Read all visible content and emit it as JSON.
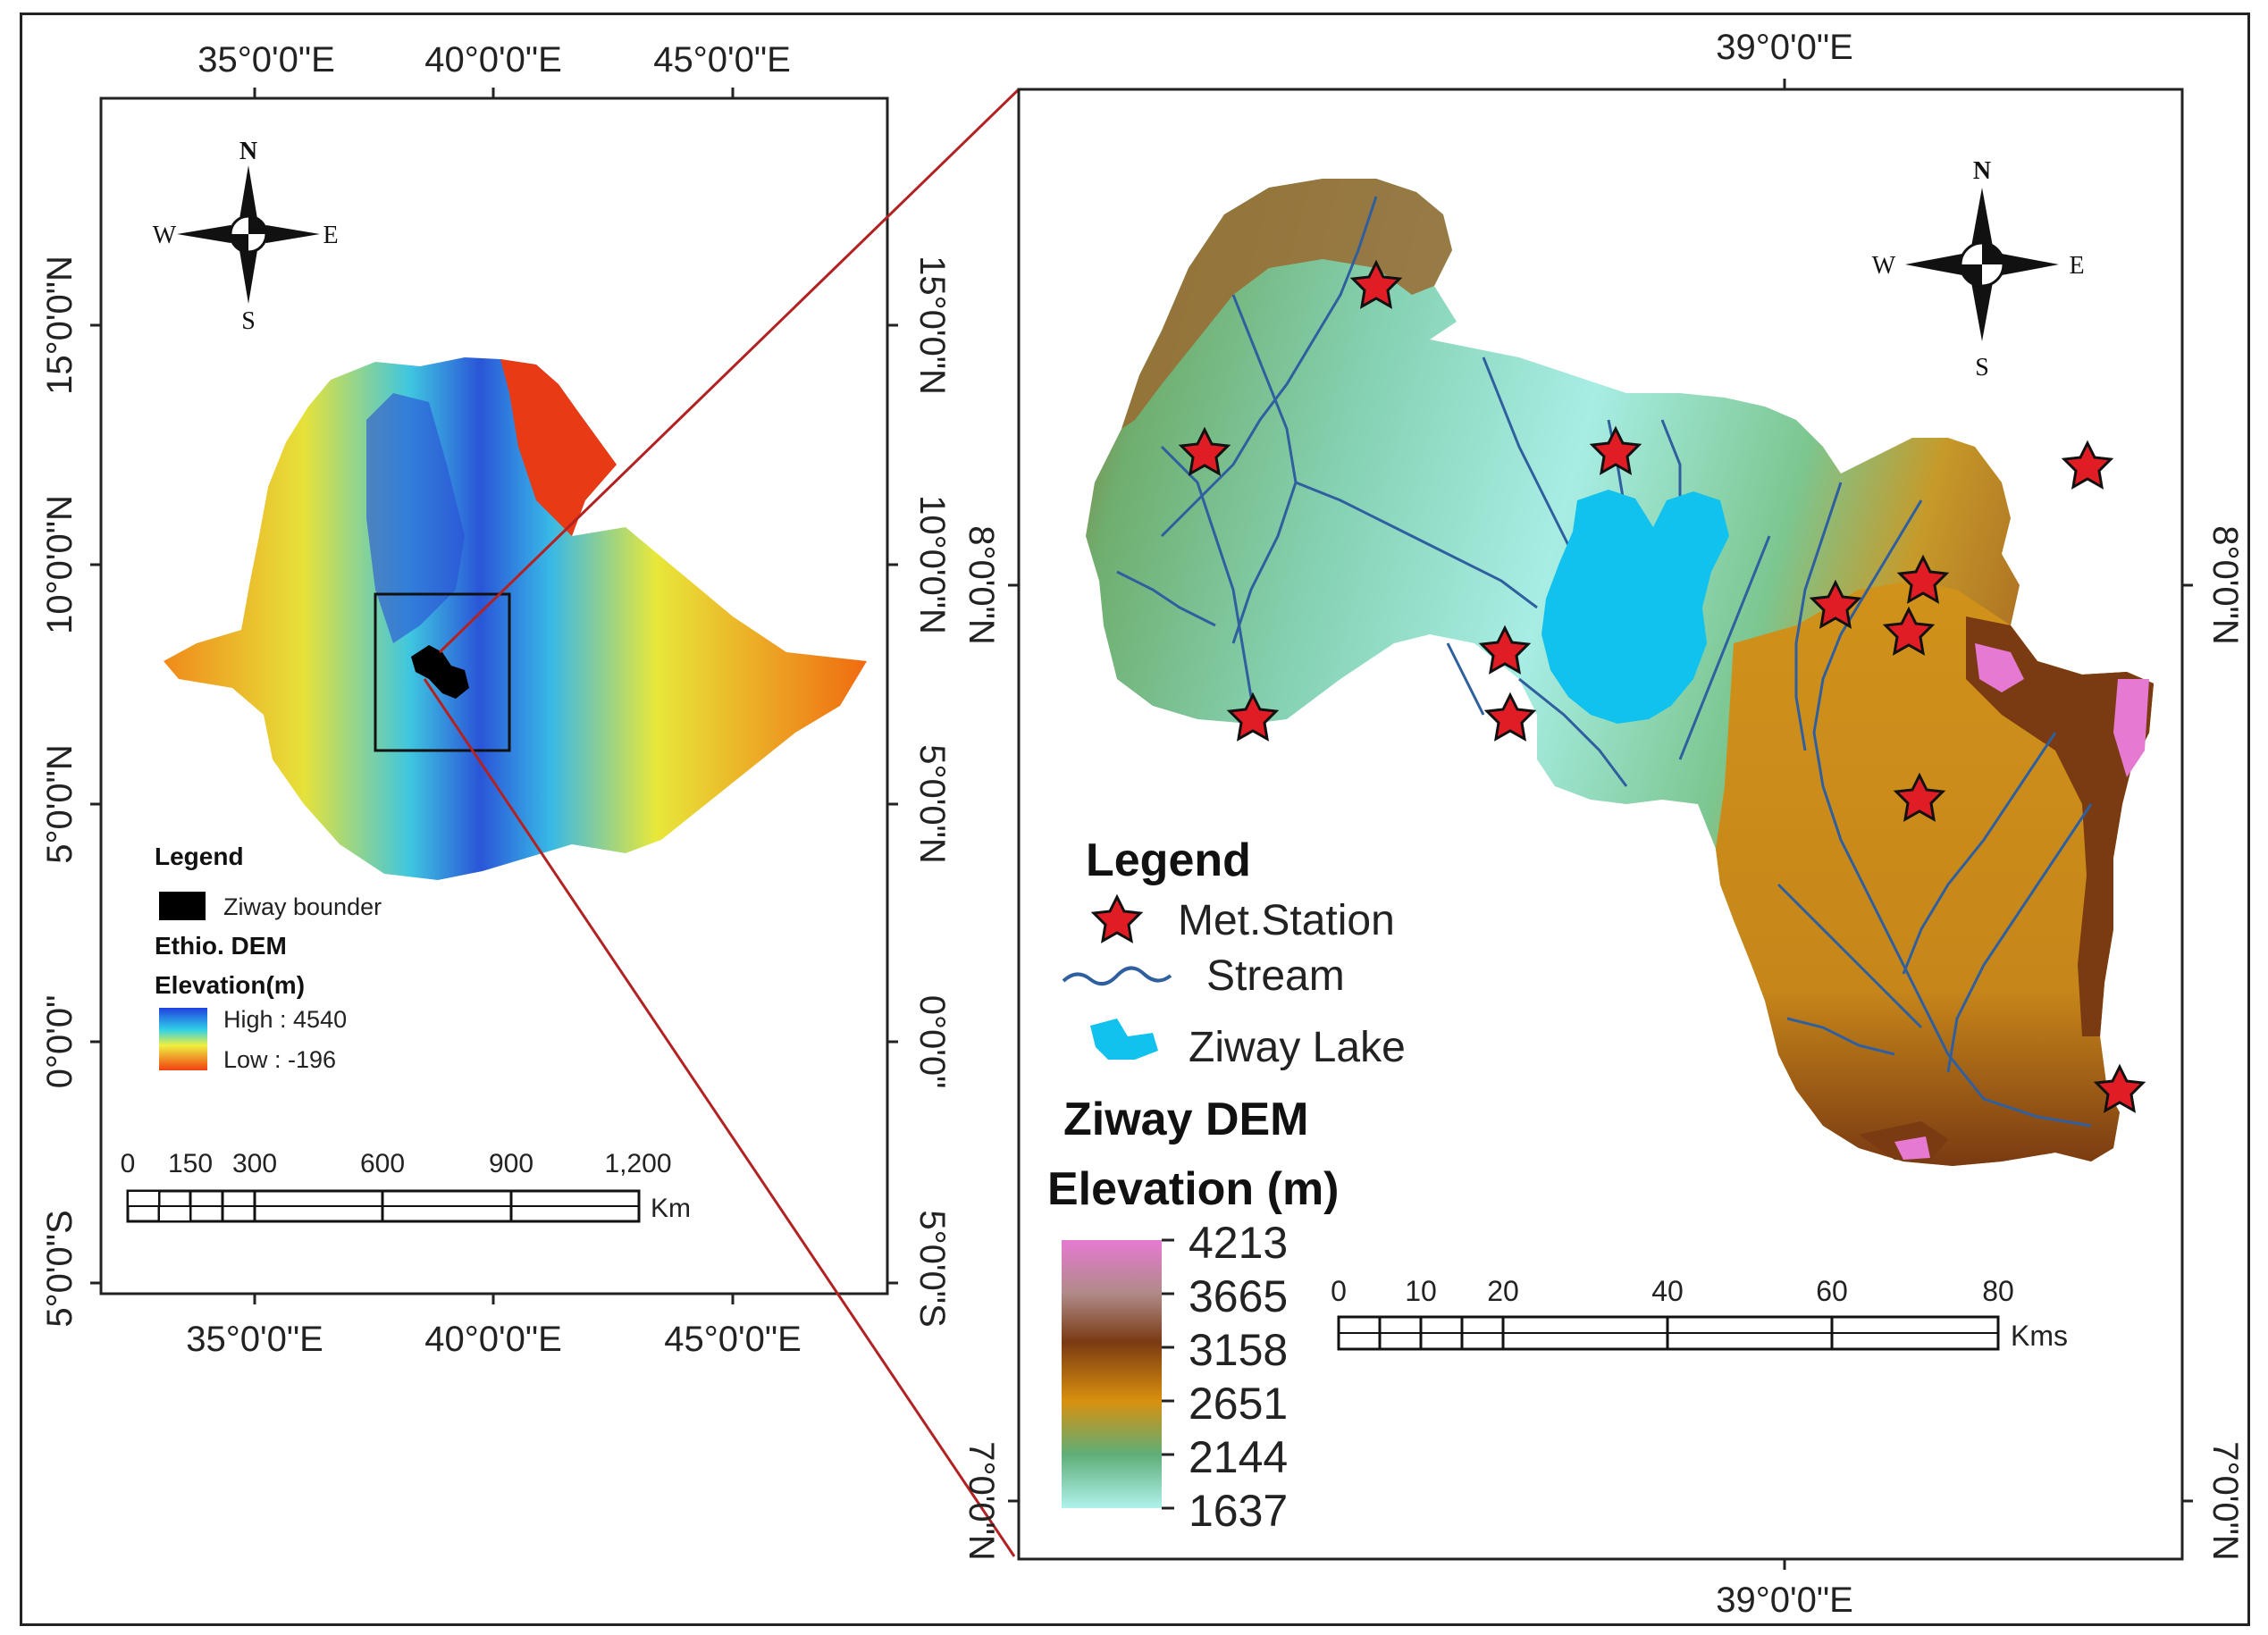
{
  "left_map": {
    "top_ticks": [
      "35°0'0\"E",
      "40°0'0\"E",
      "45°0'0\"E"
    ],
    "bottom_ticks": [
      "35°0'0\"E",
      "40°0'0\"E",
      "45°0'0\"E"
    ],
    "left_ticks": [
      "15°0'0\"N",
      "10°0'0\"N",
      "5°0'0\"N",
      "0°0'0\"",
      "5°0'0\"S"
    ],
    "right_ticks": [
      "15°0'0\"N",
      "10°0'0\"N",
      "5°0'0\"N",
      "0°0'0\"",
      "5°0'0\"S"
    ],
    "compass": {
      "n": "N",
      "s": "S",
      "e": "E",
      "w": "W"
    },
    "legend": {
      "title": "Legend",
      "boundary_label": "Ziway bounder",
      "dem_title": "Ethio. DEM",
      "elevation_title": "Elevation(m)",
      "high_label": "High : 4540",
      "low_label": "Low : -196"
    },
    "scale": {
      "labels": [
        "0",
        "150",
        "300",
        "600",
        "900",
        "1,200"
      ],
      "unit": "Km"
    }
  },
  "right_map": {
    "top_ticks": [
      "39°0'0\"E"
    ],
    "bottom_ticks": [
      "39°0'0\"E"
    ],
    "left_ticks": [
      "8°0'0\"N",
      "7°0'0\"N"
    ],
    "right_ticks": [
      "8°0'0\"N",
      "7°0'0\"N"
    ],
    "compass": {
      "n": "N",
      "s": "S",
      "e": "E",
      "w": "W"
    },
    "legend": {
      "title": "Legend",
      "station_label": "Met.Station",
      "stream_label": "Stream",
      "lake_label": "Ziway Lake",
      "dem_title": "Ziway DEM",
      "elevation_title": "Elevation  (m)",
      "elevation_values": [
        "4213",
        "3665",
        "3158",
        "2651",
        "2144",
        "1637"
      ]
    },
    "scale": {
      "labels": [
        "0",
        "10",
        "20",
        "40",
        "60",
        "80"
      ],
      "unit": "Kms"
    }
  },
  "colors": {
    "frame": "#222222",
    "inset_line": "#b22222",
    "station_fill": "#e01c24",
    "lake": "#12c2ee",
    "stream": "#2f5f9e",
    "dem_high": "#e67ad2",
    "dem_mid_brown": "#7a3a12",
    "dem_mid_orange": "#d9900e",
    "dem_green": "#5fae78",
    "dem_low": "#aef2ea"
  }
}
